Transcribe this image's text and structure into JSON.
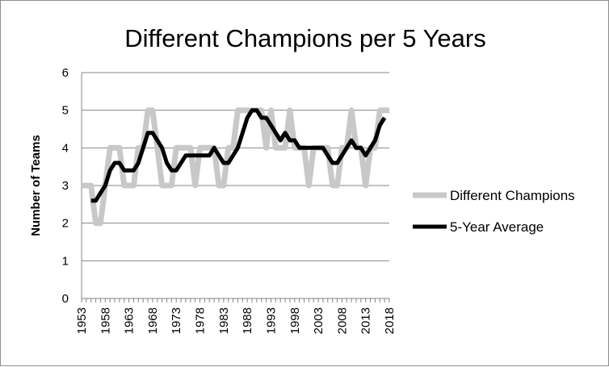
{
  "chart_data": {
    "type": "line",
    "title": "Different Champions per 5 Years",
    "xlabel": "",
    "ylabel": "Number of Teams",
    "ylim": [
      0,
      6
    ],
    "xlim": [
      1953,
      2018
    ],
    "y_ticks": [
      0,
      1,
      2,
      3,
      4,
      5,
      6
    ],
    "x_ticks": [
      1953,
      1958,
      1963,
      1968,
      1973,
      1978,
      1983,
      1988,
      1993,
      1998,
      2003,
      2008,
      2013,
      2018
    ],
    "grid": "horizontal",
    "legend_position": "right",
    "series": [
      {
        "name": "Different Champions",
        "color": "#c8c8c8",
        "x": [
          1953,
          1954,
          1955,
          1956,
          1957,
          1958,
          1959,
          1960,
          1961,
          1962,
          1963,
          1964,
          1965,
          1966,
          1967,
          1968,
          1969,
          1970,
          1971,
          1972,
          1973,
          1974,
          1975,
          1976,
          1977,
          1978,
          1979,
          1980,
          1981,
          1982,
          1983,
          1984,
          1985,
          1986,
          1987,
          1988,
          1989,
          1990,
          1991,
          1992,
          1993,
          1994,
          1995,
          1996,
          1997,
          1998,
          1999,
          2000,
          2001,
          2002,
          2003,
          2004,
          2005,
          2006,
          2007,
          2008,
          2009,
          2010,
          2011,
          2012,
          2013,
          2014,
          2015,
          2016,
          2017,
          2018
        ],
        "values": [
          3,
          3,
          3,
          2,
          2,
          3,
          4,
          4,
          4,
          3,
          3,
          3,
          4,
          4,
          5,
          5,
          4,
          3,
          3,
          3,
          4,
          4,
          4,
          4,
          3,
          4,
          4,
          4,
          4,
          3,
          3,
          4,
          4,
          5,
          5,
          5,
          5,
          5,
          5,
          4,
          5,
          4,
          4,
          4,
          5,
          4,
          4,
          4,
          3,
          4,
          4,
          4,
          4,
          3,
          3,
          4,
          4,
          5,
          4,
          4,
          3,
          4,
          4,
          5,
          5,
          5
        ]
      },
      {
        "name": "5-Year Average",
        "color": "#000000",
        "x": [
          1955,
          1956,
          1957,
          1958,
          1959,
          1960,
          1961,
          1962,
          1963,
          1964,
          1965,
          1966,
          1967,
          1968,
          1969,
          1970,
          1971,
          1972,
          1973,
          1974,
          1975,
          1976,
          1977,
          1978,
          1979,
          1980,
          1981,
          1982,
          1983,
          1984,
          1985,
          1986,
          1987,
          1988,
          1989,
          1990,
          1991,
          1992,
          1993,
          1994,
          1995,
          1996,
          1997,
          1998,
          1999,
          2000,
          2001,
          2002,
          2003,
          2004,
          2005,
          2006,
          2007,
          2008,
          2009,
          2010,
          2011,
          2012,
          2013,
          2014,
          2015,
          2016,
          2017
        ],
        "values": [
          2.6,
          2.6,
          2.8,
          3.0,
          3.4,
          3.6,
          3.6,
          3.4,
          3.4,
          3.4,
          3.6,
          4.0,
          4.4,
          4.4,
          4.2,
          4.0,
          3.6,
          3.4,
          3.4,
          3.6,
          3.8,
          3.8,
          3.8,
          3.8,
          3.8,
          3.8,
          4.0,
          3.8,
          3.6,
          3.6,
          3.8,
          4.0,
          4.4,
          4.8,
          5.0,
          5.0,
          4.8,
          4.8,
          4.6,
          4.4,
          4.2,
          4.4,
          4.2,
          4.2,
          4.0,
          4.0,
          4.0,
          4.0,
          4.0,
          4.0,
          3.8,
          3.6,
          3.6,
          3.8,
          4.0,
          4.2,
          4.0,
          4.0,
          3.8,
          4.0,
          4.2,
          4.6,
          4.8
        ]
      }
    ]
  }
}
